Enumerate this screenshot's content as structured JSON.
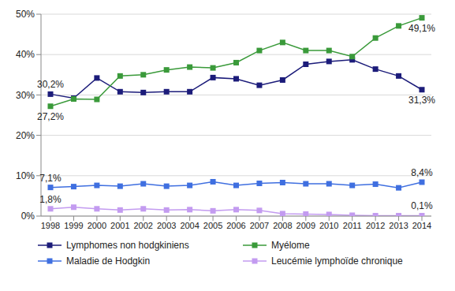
{
  "chart_data": {
    "type": "line",
    "categories": [
      "1998",
      "1999",
      "2000",
      "2001",
      "2002",
      "2003",
      "2004",
      "2005",
      "2006",
      "2007",
      "2008",
      "2009",
      "2010",
      "2011",
      "2012",
      "2013",
      "2014"
    ],
    "ylim": [
      0,
      50
    ],
    "yticks": [
      {
        "value": 0,
        "label": "0%"
      },
      {
        "value": 10,
        "label": "10%"
      },
      {
        "value": 20,
        "label": "20%"
      },
      {
        "value": 30,
        "label": "30%"
      },
      {
        "value": 40,
        "label": "40%"
      },
      {
        "value": 50,
        "label": "50%"
      }
    ],
    "grid": true,
    "legend": "bottom",
    "marker": "square",
    "data_labels": true,
    "series": [
      {
        "name": "Lymphomes non hodgkiniens",
        "color": "#1c1c7a",
        "values": [
          30.2,
          29.2,
          34.2,
          30.8,
          30.6,
          30.8,
          30.8,
          34.3,
          34.0,
          32.4,
          33.7,
          37.6,
          38.3,
          38.7,
          36.4,
          34.7,
          31.3
        ],
        "value_labels": [
          "30,2%",
          null,
          null,
          null,
          null,
          null,
          null,
          null,
          null,
          null,
          null,
          null,
          null,
          null,
          null,
          null,
          "31,3%"
        ]
      },
      {
        "name": "Myélome",
        "color": "#3a9a3a",
        "values": [
          27.2,
          29.0,
          28.9,
          34.7,
          35.0,
          36.2,
          36.9,
          36.7,
          38.0,
          41.0,
          43.0,
          41.0,
          41.0,
          39.5,
          44.1,
          47.1,
          49.1
        ],
        "value_labels": [
          "27,2%",
          null,
          null,
          null,
          null,
          null,
          null,
          null,
          null,
          null,
          null,
          null,
          null,
          null,
          null,
          null,
          "49,1%"
        ]
      },
      {
        "name": "Maladie de Hodgkin",
        "color": "#3f6fe0",
        "values": [
          7.1,
          7.3,
          7.6,
          7.4,
          8.0,
          7.4,
          7.6,
          8.5,
          7.6,
          8.1,
          8.3,
          8.0,
          8.0,
          7.6,
          7.9,
          7.0,
          8.4
        ],
        "value_labels": [
          "7,1%",
          null,
          null,
          null,
          null,
          null,
          null,
          null,
          null,
          null,
          null,
          null,
          null,
          null,
          null,
          null,
          "8,4%"
        ]
      },
      {
        "name": "Leucémie lymphoïde chronique",
        "color": "#c39bf0",
        "values": [
          1.8,
          2.2,
          1.8,
          1.5,
          1.8,
          1.5,
          1.6,
          1.3,
          1.6,
          1.4,
          0.6,
          0.5,
          0.4,
          0.2,
          0.1,
          0.1,
          0.1
        ],
        "value_labels": [
          "1,8%",
          null,
          null,
          null,
          null,
          null,
          null,
          null,
          null,
          null,
          null,
          null,
          null,
          null,
          null,
          null,
          "0,1%"
        ]
      }
    ]
  }
}
